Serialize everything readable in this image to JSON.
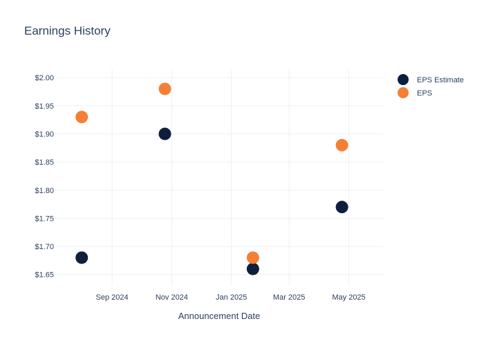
{
  "chart_data": {
    "type": "scatter",
    "title": "Earnings History",
    "xlabel": "Announcement Date",
    "ylabel": "",
    "x_axis": {
      "type": "date",
      "range": [
        "2024-07-05",
        "2025-06-05"
      ],
      "ticks": [
        {
          "date": "2024-09-01",
          "label": "Sep 2024"
        },
        {
          "date": "2024-11-01",
          "label": "Nov 2024"
        },
        {
          "date": "2025-01-01",
          "label": "Jan 2025"
        },
        {
          "date": "2025-03-01",
          "label": "Mar 2025"
        },
        {
          "date": "2025-05-01",
          "label": "May 2025"
        }
      ]
    },
    "y_axis": {
      "range": [
        1.63,
        2.015
      ],
      "ticks": [
        1.65,
        1.7,
        1.75,
        1.8,
        1.85,
        1.9,
        1.95,
        2.0
      ],
      "tick_labels": [
        "$1.65",
        "$1.70",
        "$1.75",
        "$1.80",
        "$1.85",
        "$1.90",
        "$1.95",
        "$2.00"
      ]
    },
    "grid": true,
    "legend_position": "top-right",
    "series": [
      {
        "name": "EPS Estimate",
        "color": "#0d1f3d",
        "points": [
          {
            "x": "2024-08-01",
            "y": 1.68
          },
          {
            "x": "2024-10-25",
            "y": 1.9
          },
          {
            "x": "2025-01-23",
            "y": 1.66
          },
          {
            "x": "2025-04-24",
            "y": 1.77
          }
        ]
      },
      {
        "name": "EPS",
        "color": "#f57f35",
        "points": [
          {
            "x": "2024-08-01",
            "y": 1.93
          },
          {
            "x": "2024-10-25",
            "y": 1.98
          },
          {
            "x": "2025-01-23",
            "y": 1.68
          },
          {
            "x": "2025-04-24",
            "y": 1.88
          }
        ]
      }
    ]
  }
}
